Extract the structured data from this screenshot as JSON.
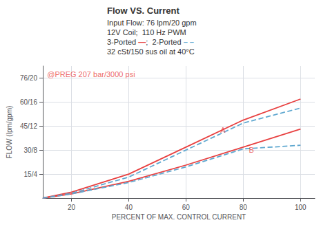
{
  "chart_data": {
    "type": "line",
    "title": "Flow VS. Current",
    "subtitle": [
      "Input Flow: 76 lpm/20 gpm",
      "12V Coil;  110 Hz PWM",
      "3-Ported —;  2-Ported – –",
      "32 cSt/150 sus oil at 40°C"
    ],
    "x_label": "PERCENT OF MAX. CONTROL CURRENT",
    "y_label": "FLOW (lpm/gpm)",
    "x": [
      10,
      20,
      40,
      60,
      80,
      100
    ],
    "series": [
      {
        "color": "#e84040",
        "line_style": "solid",
        "values": [
          0.0,
          1.0,
          4.0,
          8.5,
          13.0,
          16.5
        ]
      },
      {
        "color": "#5fa8d0",
        "line_style": "dashed",
        "values": [
          0.0,
          0.8,
          3.5,
          8.0,
          12.5,
          15.0
        ]
      },
      {
        "color": "#e84040",
        "line_style": "solid",
        "values": [
          0.0,
          0.7,
          2.8,
          5.5,
          8.5,
          11.5
        ]
      },
      {
        "color": "#5fa8d0",
        "line_style": "dashed",
        "values": [
          0.0,
          0.7,
          2.6,
          5.2,
          8.2,
          8.8
        ]
      }
    ],
    "annotations": [
      {
        "text": "A",
        "x": 72,
        "y": 12.0,
        "color": "#e84040"
      },
      {
        "text": "B",
        "x": 82,
        "y": 8.6,
        "color": "#e84040"
      },
      {
        "text": "@PREG 207 bar/3000 psi",
        "x": 11.5,
        "y": 21.2,
        "color": "#e84040"
      }
    ],
    "xlim": [
      10,
      105
    ],
    "xticks": [
      20,
      40,
      60,
      80,
      100
    ],
    "ylim": [
      0,
      22
    ],
    "yticks": [
      {
        "value": 4,
        "label": "15/4"
      },
      {
        "value": 8,
        "label": "30/8"
      },
      {
        "value": 12,
        "label": "45/12"
      },
      {
        "value": 16,
        "label": "60/16"
      },
      {
        "value": 20,
        "label": "76/20"
      }
    ],
    "grid": true
  }
}
